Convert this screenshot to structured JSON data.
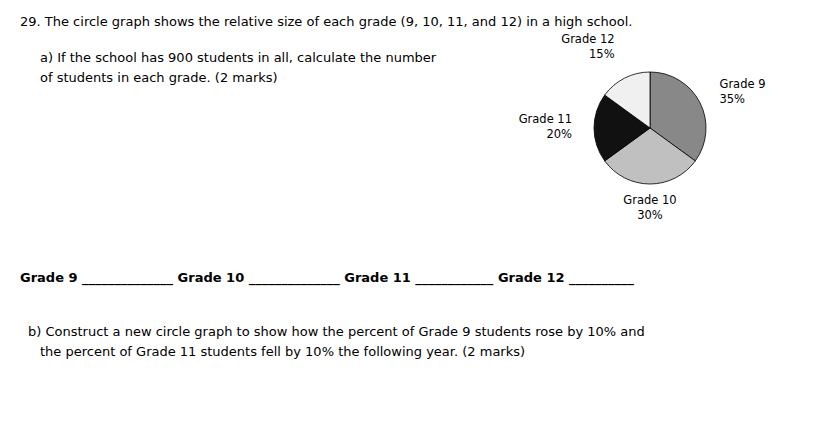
{
  "chart_data": {
    "type": "pie",
    "title": "29. The circle graph shows the relative size of each grade (9, 10, 11, and 12) in a high school.",
    "annotations": [
      "a)  If the school has 900 students in all, calculate the number",
      "of students in each grade. (2 marks)",
      "Grade 9 ______________   Grade 10 ______________   Grade 11 ____________   Grade 12 __________",
      "b)  Construct a new circle graph to show how the percent of Grade 9 students rose by 10% and",
      "the percent of Grade 11 students fell by 10% the following year.  (2 marks)"
    ],
    "categories": [
      "Grade 9",
      "Grade 10",
      "Grade 11",
      "Grade 12"
    ],
    "values": [
      35,
      30,
      20,
      15
    ],
    "value_labels": [
      "35%",
      "30%",
      "20%",
      "15%"
    ],
    "colors": [
      "#888888",
      "#c0c0c0",
      "#111111",
      "#f0f0f0"
    ],
    "data_labels": true
  }
}
